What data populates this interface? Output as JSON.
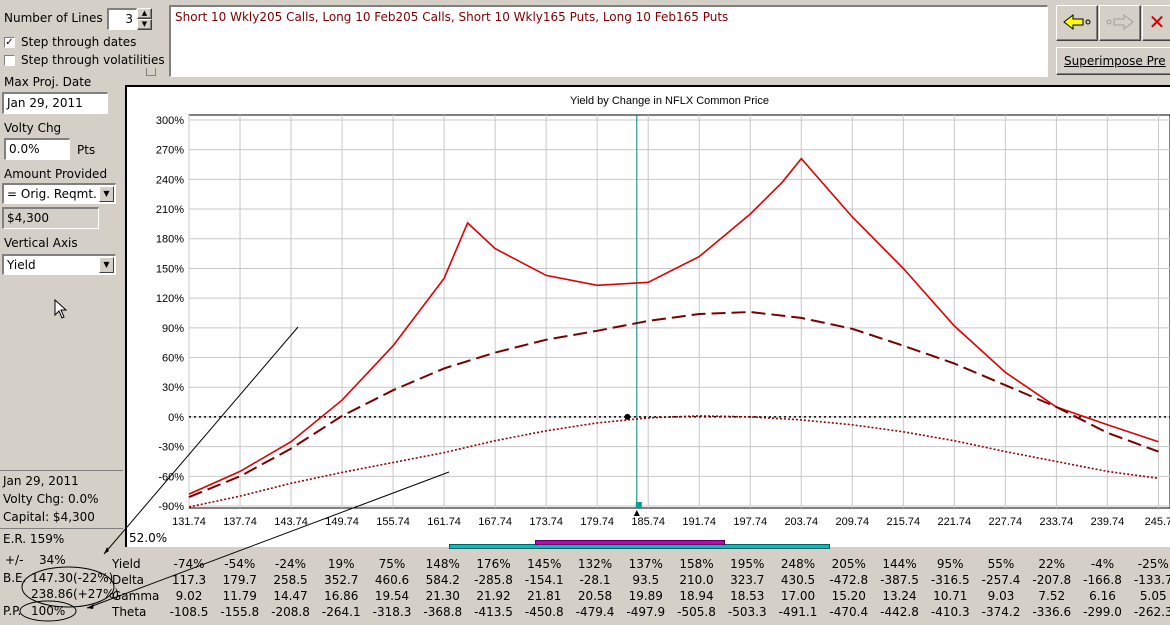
{
  "controls": {
    "num_lines_label": "Number of Lines",
    "num_lines_value": "3",
    "step_dates_label": "Step through dates",
    "step_dates_checked": true,
    "step_vols_label": "Step through volatilities",
    "step_vols_checked": false,
    "max_proj_date_label": "Max Proj. Date",
    "max_proj_date_value": "Jan 29, 2011",
    "volty_chg_label": "Volty Chg",
    "volty_chg_value": "0.0%",
    "volty_chg_unit": "Pts",
    "amount_provided_label": "Amount Provided",
    "amount_provided_value": "= Orig. Reqmt.",
    "amount_value": "$4,300",
    "vertical_axis_label": "Vertical Axis",
    "vertical_axis_value": "Yield"
  },
  "position_text": "Short 10 Wkly205 Calls, Long 10 Feb205 Calls, Short 10 Wkly165 Puts, Long 10 Feb165 Puts",
  "buttons": {
    "back_icon": "arrow-left-icon",
    "forward_icon": "arrow-right-icon",
    "close_icon": "close-icon",
    "superimpose_label": "Superimpose Pre"
  },
  "info": {
    "date": "Jan 29, 2011",
    "volty": "Volty Chg:  0.0%",
    "capital": "Capital:  $4,300",
    "er": "E.R. 159%",
    "pm_label": "+/-",
    "pm_value": "34%",
    "be_label": "B.E.",
    "be_value1": "147.30(-22%)",
    "be_value2": "238.86(+27%)",
    "pp_label": "P.P.",
    "pp_value": "100%",
    "corner_pct": "52.0%"
  },
  "chart_data": {
    "type": "line",
    "title": "Yield by Change in NFLX Common Price",
    "xlabel": "",
    "ylabel": "",
    "x": [
      131.74,
      137.74,
      143.74,
      149.74,
      155.74,
      161.74,
      167.74,
      173.74,
      179.74,
      185.74,
      191.74,
      197.74,
      203.74,
      209.74,
      215.74,
      221.74,
      227.74,
      233.74,
      239.74,
      245.74
    ],
    "x_tick_labels": [
      "131.74",
      "137.74",
      "143.74",
      "149.74",
      "155.74",
      "161.74",
      "167.74",
      "173.74",
      "179.74",
      "185.74",
      "191.74",
      "197.74",
      "203.74",
      "209.74",
      "215.74",
      "221.74",
      "227.74",
      "233.74",
      "239.74",
      "245.7"
    ],
    "y_tick_labels": [
      "300%",
      "270%",
      "240%",
      "210%",
      "180%",
      "150%",
      "120%",
      "90%",
      "60%",
      "30%",
      "0%",
      "-30%",
      "-60%",
      "-90%"
    ],
    "xlim": [
      131.74,
      247.1
    ],
    "ylim": [
      -92,
      305
    ],
    "current_price": 184.4,
    "series": [
      {
        "color": "#e00000",
        "style": "solid",
        "points": [
          [
            131.74,
            -78
          ],
          [
            137.74,
            -55
          ],
          [
            143.74,
            -25
          ],
          [
            149.74,
            17
          ],
          [
            155.74,
            72
          ],
          [
            161.74,
            140
          ],
          [
            164.5,
            196
          ],
          [
            167.74,
            170
          ],
          [
            173.74,
            143
          ],
          [
            179.74,
            133
          ],
          [
            185.74,
            136
          ],
          [
            191.74,
            162
          ],
          [
            197.74,
            205
          ],
          [
            201.5,
            237
          ],
          [
            203.74,
            261
          ],
          [
            209.74,
            202
          ],
          [
            215.74,
            150
          ],
          [
            221.74,
            92
          ],
          [
            227.74,
            45
          ],
          [
            233.74,
            10
          ],
          [
            239.74,
            -8
          ],
          [
            245.74,
            -25
          ]
        ]
      },
      {
        "color": "#7a0000",
        "style": "dashed",
        "points": [
          [
            131.74,
            -81
          ],
          [
            137.74,
            -60
          ],
          [
            143.74,
            -32
          ],
          [
            149.74,
            1
          ],
          [
            155.74,
            27
          ],
          [
            161.74,
            49
          ],
          [
            167.74,
            65
          ],
          [
            173.74,
            78
          ],
          [
            179.74,
            87
          ],
          [
            185.74,
            97
          ],
          [
            191.74,
            104
          ],
          [
            197.74,
            106
          ],
          [
            203.74,
            100
          ],
          [
            209.74,
            89
          ],
          [
            215.74,
            72
          ],
          [
            221.74,
            54
          ],
          [
            227.74,
            32
          ],
          [
            233.74,
            10
          ],
          [
            239.74,
            -16
          ],
          [
            245.74,
            -35
          ]
        ]
      },
      {
        "color": "#990000",
        "style": "dotted",
        "points": [
          [
            131.74,
            -91
          ],
          [
            137.74,
            -80
          ],
          [
            143.74,
            -67
          ],
          [
            149.74,
            -56
          ],
          [
            155.74,
            -46
          ],
          [
            161.74,
            -36
          ],
          [
            167.74,
            -24
          ],
          [
            173.74,
            -14
          ],
          [
            179.74,
            -6
          ],
          [
            185.74,
            -1
          ],
          [
            191.74,
            1
          ],
          [
            197.74,
            0
          ],
          [
            203.74,
            -3
          ],
          [
            209.74,
            -8
          ],
          [
            215.74,
            -15
          ],
          [
            221.74,
            -24
          ],
          [
            227.74,
            -35
          ],
          [
            233.74,
            -45
          ],
          [
            239.74,
            -55
          ],
          [
            245.74,
            -62
          ]
        ]
      }
    ],
    "zero_line": 0,
    "grid": true,
    "legend": "none"
  },
  "stats": {
    "row_labels": [
      "Yield",
      "Delta",
      "Gamma",
      "Theta"
    ],
    "rows": [
      [
        "-74%",
        "-54%",
        "-24%",
        "19%",
        "75%",
        "148%",
        "176%",
        "145%",
        "132%",
        "137%",
        "158%",
        "195%",
        "248%",
        "205%",
        "144%",
        "95%",
        "55%",
        "22%",
        "-4%",
        "-25%"
      ],
      [
        "117.3",
        "179.7",
        "258.5",
        "352.7",
        "460.6",
        "584.2",
        "-285.8",
        "-154.1",
        "-28.1",
        "93.5",
        "210.0",
        "323.7",
        "430.5",
        "-472.8",
        "-387.5",
        "-316.5",
        "-257.4",
        "-207.8",
        "-166.8",
        "-133.7"
      ],
      [
        "9.02",
        "11.79",
        "14.47",
        "16.86",
        "19.54",
        "21.30",
        "21.92",
        "21.81",
        "20.58",
        "19.89",
        "18.94",
        "18.53",
        "17.00",
        "15.20",
        "13.24",
        "10.71",
        "9.03",
        "7.52",
        "6.16",
        "5.05"
      ],
      [
        "-108.5",
        "-155.8",
        "-208.8",
        "-264.1",
        "-318.3",
        "-368.8",
        "-413.5",
        "-450.8",
        "-479.4",
        "-497.9",
        "-505.8",
        "-503.3",
        "-491.1",
        "-470.4",
        "-442.8",
        "-410.3",
        "-374.2",
        "-336.6",
        "-299.0",
        "-262.3"
      ]
    ]
  },
  "colors": {
    "bar_cyan": "#00c0c0",
    "bar_magenta": "#c000c0",
    "position_text": "#800000"
  }
}
